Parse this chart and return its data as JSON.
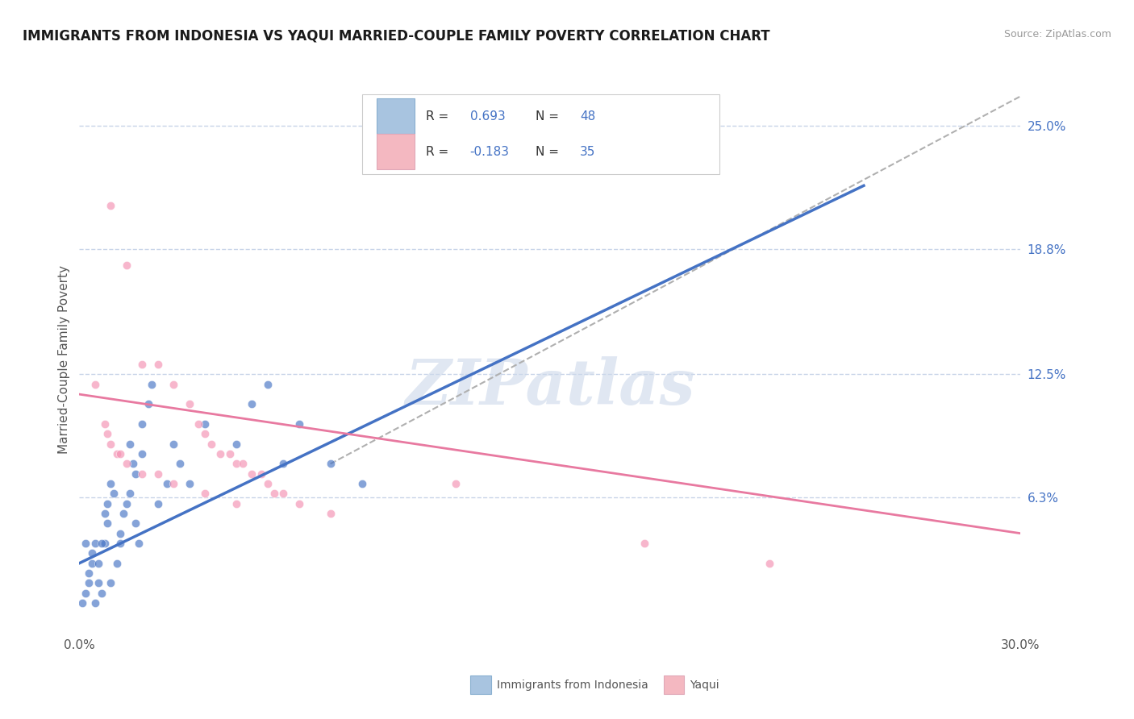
{
  "title": "IMMIGRANTS FROM INDONESIA VS YAQUI MARRIED-COUPLE FAMILY POVERTY CORRELATION CHART",
  "source": "Source: ZipAtlas.com",
  "ylabel": "Married-Couple Family Poverty",
  "xlim": [
    0.0,
    0.3
  ],
  "ylim": [
    -0.005,
    0.27
  ],
  "ytick_vals": [
    0.063,
    0.125,
    0.188,
    0.25
  ],
  "ytick_labels": [
    "6.3%",
    "12.5%",
    "18.8%",
    "25.0%"
  ],
  "watermark": "ZIPatlas",
  "blue_scatter": [
    [
      0.002,
      0.04
    ],
    [
      0.003,
      0.02
    ],
    [
      0.004,
      0.03
    ],
    [
      0.005,
      0.01
    ],
    [
      0.006,
      0.02
    ],
    [
      0.007,
      0.015
    ],
    [
      0.008,
      0.04
    ],
    [
      0.009,
      0.05
    ],
    [
      0.01,
      0.02
    ],
    [
      0.012,
      0.03
    ],
    [
      0.013,
      0.04
    ],
    [
      0.015,
      0.06
    ],
    [
      0.016,
      0.09
    ],
    [
      0.017,
      0.08
    ],
    [
      0.018,
      0.05
    ],
    [
      0.019,
      0.04
    ],
    [
      0.02,
      0.1
    ],
    [
      0.022,
      0.11
    ],
    [
      0.023,
      0.12
    ],
    [
      0.025,
      0.06
    ],
    [
      0.028,
      0.07
    ],
    [
      0.03,
      0.09
    ],
    [
      0.032,
      0.08
    ],
    [
      0.035,
      0.07
    ],
    [
      0.04,
      0.1
    ],
    [
      0.05,
      0.09
    ],
    [
      0.055,
      0.11
    ],
    [
      0.06,
      0.12
    ],
    [
      0.065,
      0.08
    ],
    [
      0.07,
      0.1
    ],
    [
      0.08,
      0.08
    ],
    [
      0.09,
      0.07
    ],
    [
      0.001,
      0.01
    ],
    [
      0.002,
      0.015
    ],
    [
      0.003,
      0.025
    ],
    [
      0.004,
      0.035
    ],
    [
      0.005,
      0.04
    ],
    [
      0.006,
      0.03
    ],
    [
      0.007,
      0.04
    ],
    [
      0.008,
      0.055
    ],
    [
      0.009,
      0.06
    ],
    [
      0.01,
      0.07
    ],
    [
      0.011,
      0.065
    ],
    [
      0.013,
      0.045
    ],
    [
      0.014,
      0.055
    ],
    [
      0.016,
      0.065
    ],
    [
      0.018,
      0.075
    ],
    [
      0.02,
      0.085
    ]
  ],
  "pink_scatter": [
    [
      0.01,
      0.21
    ],
    [
      0.015,
      0.18
    ],
    [
      0.02,
      0.13
    ],
    [
      0.025,
      0.13
    ],
    [
      0.03,
      0.12
    ],
    [
      0.035,
      0.11
    ],
    [
      0.038,
      0.1
    ],
    [
      0.04,
      0.095
    ],
    [
      0.042,
      0.09
    ],
    [
      0.045,
      0.085
    ],
    [
      0.048,
      0.085
    ],
    [
      0.05,
      0.08
    ],
    [
      0.052,
      0.08
    ],
    [
      0.055,
      0.075
    ],
    [
      0.058,
      0.075
    ],
    [
      0.06,
      0.07
    ],
    [
      0.062,
      0.065
    ],
    [
      0.065,
      0.065
    ],
    [
      0.07,
      0.06
    ],
    [
      0.08,
      0.055
    ],
    [
      0.12,
      0.07
    ],
    [
      0.18,
      0.04
    ],
    [
      0.22,
      0.03
    ],
    [
      0.005,
      0.12
    ],
    [
      0.008,
      0.1
    ],
    [
      0.009,
      0.095
    ],
    [
      0.01,
      0.09
    ],
    [
      0.012,
      0.085
    ],
    [
      0.013,
      0.085
    ],
    [
      0.015,
      0.08
    ],
    [
      0.02,
      0.075
    ],
    [
      0.025,
      0.075
    ],
    [
      0.03,
      0.07
    ],
    [
      0.04,
      0.065
    ],
    [
      0.05,
      0.06
    ]
  ],
  "blue_line": [
    [
      0.0,
      0.03
    ],
    [
      0.25,
      0.22
    ]
  ],
  "pink_line": [
    [
      0.0,
      0.115
    ],
    [
      0.3,
      0.045
    ]
  ],
  "grey_dashed_line": [
    [
      0.08,
      0.08
    ],
    [
      0.3,
      0.265
    ]
  ],
  "blue_color": "#4472c4",
  "pink_scatter_color": "#f48fb1",
  "pink_line_color": "#e879a0",
  "grey_line_color": "#b0b0b0",
  "legend_blue_patch": "#a8c4e0",
  "legend_pink_patch": "#f4b8c1",
  "scatter_alpha": 0.65,
  "background_color": "#ffffff",
  "grid_color": "#c8d4e8",
  "title_fontsize": 12,
  "label_fontsize": 11,
  "tick_fontsize": 11,
  "tick_color": "#4472c4",
  "r1_val": "0.693",
  "r1_n": "48",
  "r2_val": "-0.183",
  "r2_n": "35"
}
